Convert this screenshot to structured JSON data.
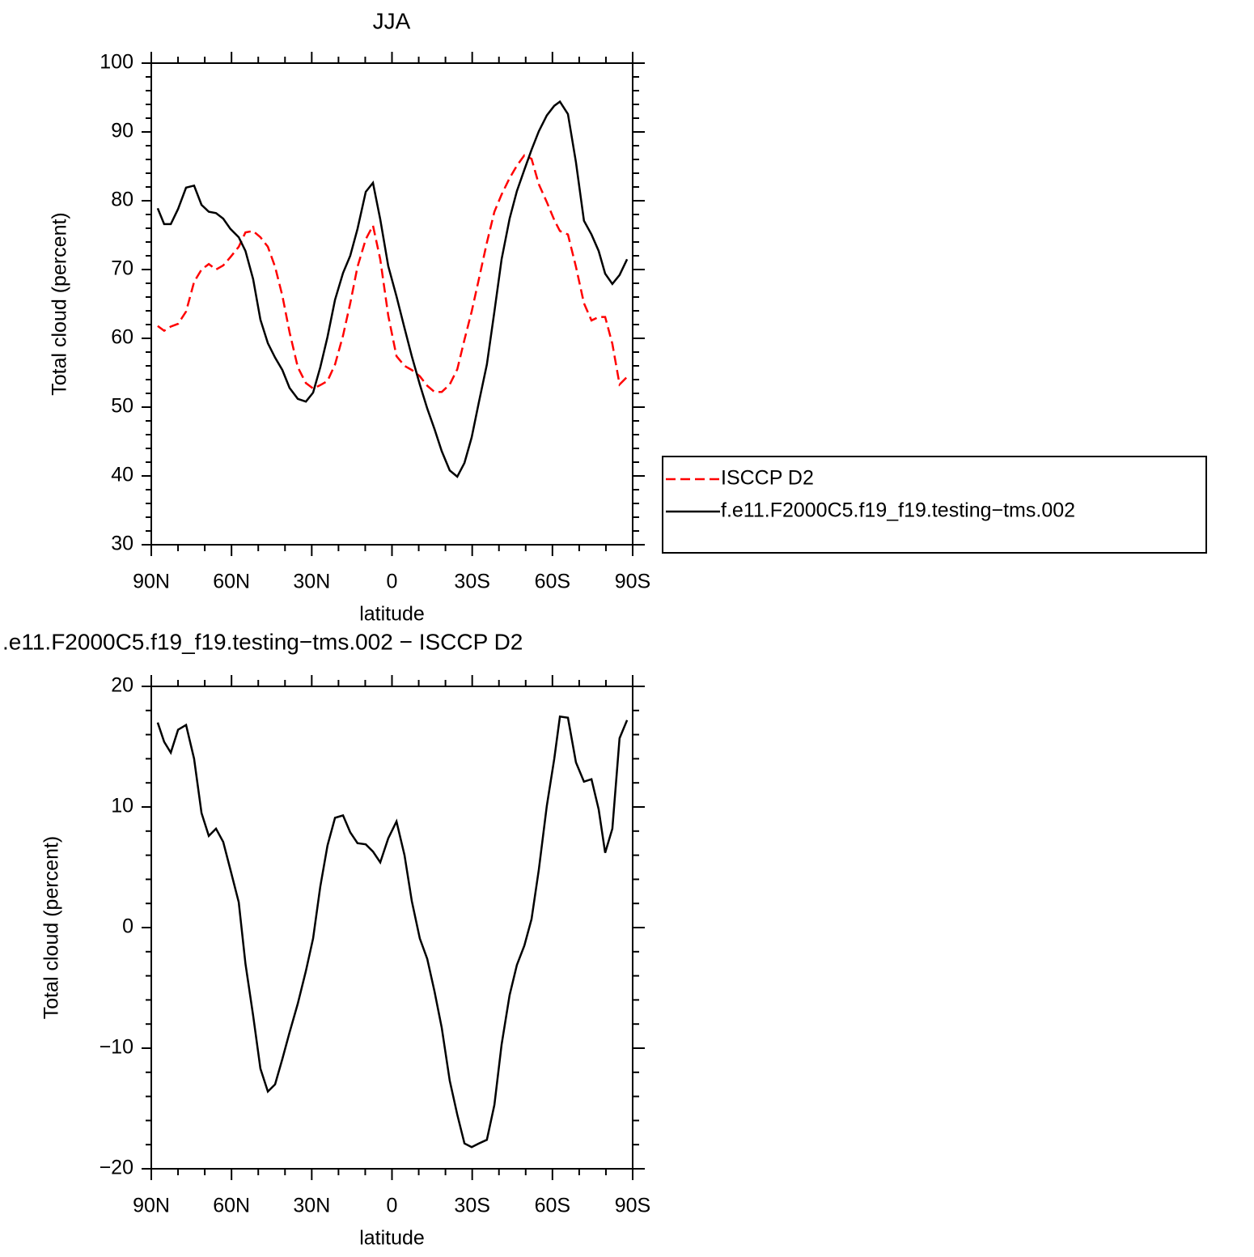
{
  "chart_data": [
    {
      "type": "line",
      "title": "JJA",
      "xlabel": "latitude",
      "ylabel": "Total cloud (percent)",
      "x": [
        87.6,
        85.2,
        82.7,
        80.0,
        77.0,
        74.0,
        71.2,
        68.5,
        65.8,
        63.1,
        60.4,
        57.3,
        54.8,
        51.9,
        49.2,
        46.4,
        43.7,
        41.0,
        38.3,
        35.2,
        32.2,
        29.5,
        26.8,
        24.1,
        21.3,
        18.3,
        15.6,
        12.9,
        9.8,
        7.1,
        4.4,
        1.4,
        -1.7,
        -4.7,
        -7.4,
        -10.4,
        -13.2,
        -15.9,
        -18.6,
        -21.6,
        -24.4,
        -27.1,
        -29.8,
        -32.5,
        -35.5,
        -38.3,
        -41.0,
        -44.0,
        -46.7,
        -49.5,
        -52.2,
        -54.9,
        -57.9,
        -60.7,
        -62.8,
        -65.8,
        -68.8,
        -71.8,
        -74.6,
        -77.3,
        -79.7,
        -82.4,
        -85.1,
        -87.9
      ],
      "series": [
        {
          "name": "ISCCP D2",
          "color": "#ff0000",
          "dashed": true,
          "values": [
            61.8,
            61.1,
            61.7,
            62.1,
            63.9,
            68.2,
            70.0,
            70.8,
            70.0,
            70.6,
            71.8,
            73.3,
            75.4,
            75.6,
            74.7,
            73.3,
            70.4,
            66.2,
            60.9,
            55.8,
            53.5,
            52.7,
            53.2,
            53.8,
            56.2,
            60.4,
            65.1,
            70.4,
            74.4,
            76.4,
            71.5,
            63.3,
            57.4,
            56.0,
            55.4,
            54.5,
            53.1,
            52.2,
            52.2,
            53.3,
            55.5,
            59.8,
            63.9,
            68.6,
            73.9,
            78.4,
            80.9,
            83.3,
            85.1,
            86.6,
            86.1,
            82.4,
            79.8,
            77.2,
            75.6,
            75.1,
            70.4,
            65.1,
            62.6,
            63.1,
            63.1,
            59.2,
            53.3,
            54.4
          ]
        },
        {
          "name": "f.e11.F2000C5.f19_f19.testing−tms.002",
          "color": "#000000",
          "dashed": false,
          "values": [
            78.9,
            76.6,
            76.6,
            78.8,
            81.9,
            82.2,
            79.4,
            78.4,
            78.2,
            77.4,
            75.9,
            74.7,
            72.7,
            68.6,
            62.7,
            59.3,
            57.2,
            55.4,
            52.8,
            51.2,
            50.8,
            52.1,
            55.8,
            60.2,
            65.6,
            69.5,
            72.0,
            75.9,
            81.3,
            82.6,
            77.3,
            70.5,
            66.1,
            61.5,
            57.4,
            53.3,
            49.8,
            46.8,
            43.6,
            40.8,
            39.9,
            41.9,
            45.6,
            50.7,
            56.2,
            63.9,
            71.5,
            77.4,
            81.4,
            84.5,
            87.4,
            90.1,
            92.4,
            93.8,
            94.4,
            92.6,
            85.6,
            77.1,
            75.1,
            72.7,
            69.4,
            67.9,
            69.2,
            71.5
          ]
        }
      ],
      "xlim": [
        90,
        -90
      ],
      "xticks": [
        {
          "value": 90,
          "label": "90N"
        },
        {
          "value": 60,
          "label": "60N"
        },
        {
          "value": 30,
          "label": "30N"
        },
        0,
        {
          "value": -30,
          "label": "30S"
        },
        {
          "value": -60,
          "label": "60S"
        },
        {
          "value": -90,
          "label": "90S"
        }
      ],
      "ylim": [
        30,
        100
      ],
      "yticks": [
        30,
        40,
        50,
        60,
        70,
        80,
        90,
        100
      ],
      "legend": "right"
    },
    {
      "type": "line",
      "title": ".e11.F2000C5.f19_f19.testing−tms.002 − ISCCP D2",
      "xlabel": "latitude",
      "ylabel": "Total cloud (percent)",
      "x": [
        87.6,
        85.2,
        82.7,
        80.0,
        77.0,
        74.0,
        71.2,
        68.5,
        65.8,
        63.1,
        60.4,
        57.3,
        54.8,
        51.9,
        49.2,
        46.4,
        43.7,
        41.0,
        38.3,
        35.2,
        32.2,
        29.5,
        26.8,
        24.1,
        21.3,
        18.3,
        15.6,
        12.9,
        9.8,
        7.1,
        4.4,
        1.4,
        -1.7,
        -4.7,
        -7.4,
        -10.4,
        -13.2,
        -15.9,
        -18.6,
        -21.6,
        -24.4,
        -27.1,
        -29.8,
        -32.5,
        -35.5,
        -38.3,
        -41.0,
        -44.0,
        -46.7,
        -49.5,
        -52.2,
        -54.9,
        -57.9,
        -60.7,
        -62.8,
        -65.8,
        -68.8,
        -71.8,
        -74.6,
        -77.3,
        -79.7,
        -82.4,
        -85.1,
        -87.9
      ],
      "series": [
        {
          "color": "#000000",
          "dashed": false,
          "values": [
            17.0,
            15.4,
            14.5,
            16.4,
            16.8,
            14.0,
            9.5,
            7.6,
            8.2,
            7.1,
            4.8,
            2.1,
            -3.0,
            -7.3,
            -11.7,
            -13.6,
            -13.0,
            -10.9,
            -8.7,
            -6.3,
            -3.6,
            -0.9,
            3.4,
            6.8,
            9.1,
            9.3,
            7.9,
            7.0,
            6.9,
            6.3,
            5.4,
            7.4,
            8.8,
            6.0,
            2.2,
            -0.9,
            -2.6,
            -5.3,
            -8.3,
            -12.7,
            -15.5,
            -17.9,
            -18.2,
            -17.9,
            -17.6,
            -14.7,
            -9.7,
            -5.6,
            -3.1,
            -1.5,
            0.7,
            4.8,
            10.1,
            14.0,
            17.5,
            17.4,
            13.7,
            12.1,
            12.3,
            9.8,
            6.2,
            8.2,
            15.7,
            17.2
          ]
        }
      ],
      "xlim": [
        90,
        -90
      ],
      "xticks": [
        {
          "value": 90,
          "label": "90N"
        },
        {
          "value": 60,
          "label": "60N"
        },
        {
          "value": 30,
          "label": "30N"
        },
        0,
        {
          "value": -30,
          "label": "30S"
        },
        {
          "value": -60,
          "label": "60S"
        },
        {
          "value": -90,
          "label": "90S"
        }
      ],
      "ylim": [
        -20,
        20
      ],
      "yticks": [
        {
          "value": -20,
          "label": "−20"
        },
        {
          "value": -10,
          "label": "−10"
        },
        0,
        10,
        20
      ]
    }
  ]
}
